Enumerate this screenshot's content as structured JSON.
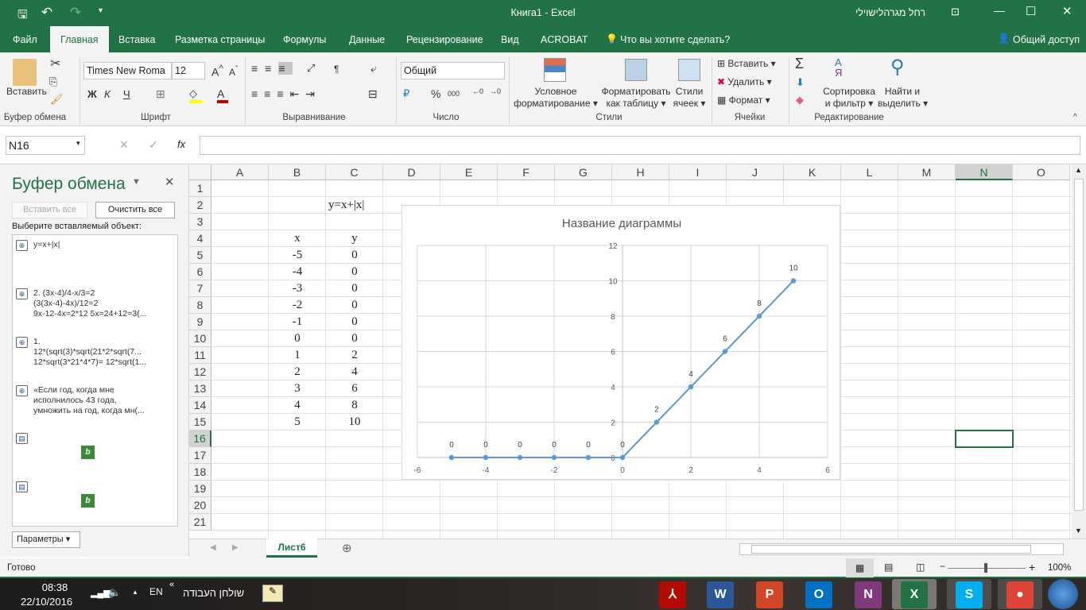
{
  "window": {
    "title": "Книга1  -  Excel",
    "user": "רחל מגרהלישוילי"
  },
  "qat": {
    "save": "save-icon",
    "undo": "undo-icon",
    "redo": "redo-icon"
  },
  "tabs": [
    {
      "label": "Файл"
    },
    {
      "label": "Главная",
      "active": true
    },
    {
      "label": "Вставка"
    },
    {
      "label": "Разметка страницы"
    },
    {
      "label": "Формулы"
    },
    {
      "label": "Данные"
    },
    {
      "label": "Рецензирование"
    },
    {
      "label": "Вид"
    },
    {
      "label": "ACROBAT"
    }
  ],
  "tell_me": "Что вы хотите сделать?",
  "share": "Общий доступ",
  "ribbon": {
    "clipboard": {
      "paste": "Вставить",
      "group": "Буфер обмена"
    },
    "font": {
      "name": "Times New Roma",
      "size": "12",
      "bold": "Ж",
      "italic": "К",
      "underline": "Ч",
      "group": "Шрифт"
    },
    "alignment": {
      "group": "Выравнивание"
    },
    "number": {
      "format": "Общий",
      "percent": "%",
      "thousands": "000",
      "group": "Число"
    },
    "styles": {
      "conditional": [
        "Условное",
        "форматирование"
      ],
      "table": [
        "Форматировать",
        "как таблицу"
      ],
      "cell": [
        "Стили",
        "ячеек"
      ],
      "group": "Стили"
    },
    "cells": {
      "insert": "Вставить",
      "delete": "Удалить",
      "format": "Формат",
      "group": "Ячейки"
    },
    "editing": {
      "sort": [
        "Сортировка",
        "и фильтр"
      ],
      "find": [
        "Найти и",
        "выделить"
      ],
      "group": "Редактирование"
    }
  },
  "formula_bar": {
    "name_box": "N16",
    "fx": "fx",
    "value": ""
  },
  "clipboard_pane": {
    "title": "Буфер обмена",
    "paste_all": "Вставить все",
    "clear_all": "Очистить все",
    "prompt": "Выберите вставляемый объект:",
    "items": [
      "y=x+|x|",
      "2. (3x-4)/4-x/3=2\n(3(3x-4)-4x)/12=2\n9x-12-4x=2*12 5x=24+12=3(...",
      "1.\n12*(sqrt(3)*sqrt(21*2*sqrt(7...\n12*sqrt(3*21*4*7)= 12*sqrt(1...",
      "«Если год, когда мне\nисполнилось 43 года,\nумножить на год, когда мн(..."
    ],
    "options": "Параметры"
  },
  "columns": [
    "A",
    "B",
    "C",
    "D",
    "E",
    "F",
    "G",
    "H",
    "I",
    "J",
    "K",
    "L",
    "M",
    "N",
    "O"
  ],
  "rows": [
    "1",
    "2",
    "3",
    "4",
    "5",
    "6",
    "7",
    "8",
    "9",
    "10",
    "11",
    "12",
    "13",
    "14",
    "15",
    "16",
    "17",
    "18",
    "19",
    "20",
    "21"
  ],
  "cells": {
    "C2": "y=x+|x|",
    "B4": "x",
    "C4": "y"
  },
  "table": {
    "x": [
      -5,
      -4,
      -3,
      -2,
      -1,
      0,
      1,
      2,
      3,
      4,
      5
    ],
    "y": [
      0,
      0,
      0,
      0,
      0,
      0,
      2,
      4,
      6,
      8,
      10
    ]
  },
  "active_cell": "N16",
  "chart_data": {
    "type": "scatter",
    "title": "Название диаграммы",
    "x": [
      -5,
      -4,
      -3,
      -2,
      -1,
      0,
      1,
      2,
      3,
      4,
      5
    ],
    "y": [
      0,
      0,
      0,
      0,
      0,
      0,
      2,
      4,
      6,
      8,
      10
    ],
    "data_labels": [
      "0",
      "0",
      "0",
      "0",
      "0",
      "0",
      "2",
      "4",
      "6",
      "8",
      "10"
    ],
    "xlim": [
      -6,
      6
    ],
    "ylim": [
      0,
      12
    ],
    "xticks": [
      "-6",
      "-4",
      "-2",
      "0",
      "2",
      "4",
      "6"
    ],
    "yticks": [
      "0",
      "2",
      "4",
      "6",
      "8",
      "10",
      "12"
    ],
    "grid": true,
    "color": "#5b9bd5"
  },
  "sheet_tab": "Лист6",
  "status": {
    "ready": "Готово",
    "zoom": "100%"
  },
  "taskbar": {
    "time": "08:38",
    "date": "22/10/2016",
    "lang": "EN",
    "desktop": "שולחן העבודה",
    "apps": [
      {
        "name": "acrobat",
        "label": "⅄",
        "color": "#b30b00"
      },
      {
        "name": "word",
        "label": "W",
        "color": "#2b579a"
      },
      {
        "name": "powerpoint",
        "label": "P",
        "color": "#d24726"
      },
      {
        "name": "outlook",
        "label": "O",
        "color": "#0072c6"
      },
      {
        "name": "onenote",
        "label": "N",
        "color": "#80397b"
      },
      {
        "name": "excel",
        "label": "X",
        "color": "#217346"
      },
      {
        "name": "skype",
        "label": "S",
        "color": "#00aff0"
      },
      {
        "name": "chrome",
        "label": "●",
        "color": "#db4437"
      }
    ]
  }
}
